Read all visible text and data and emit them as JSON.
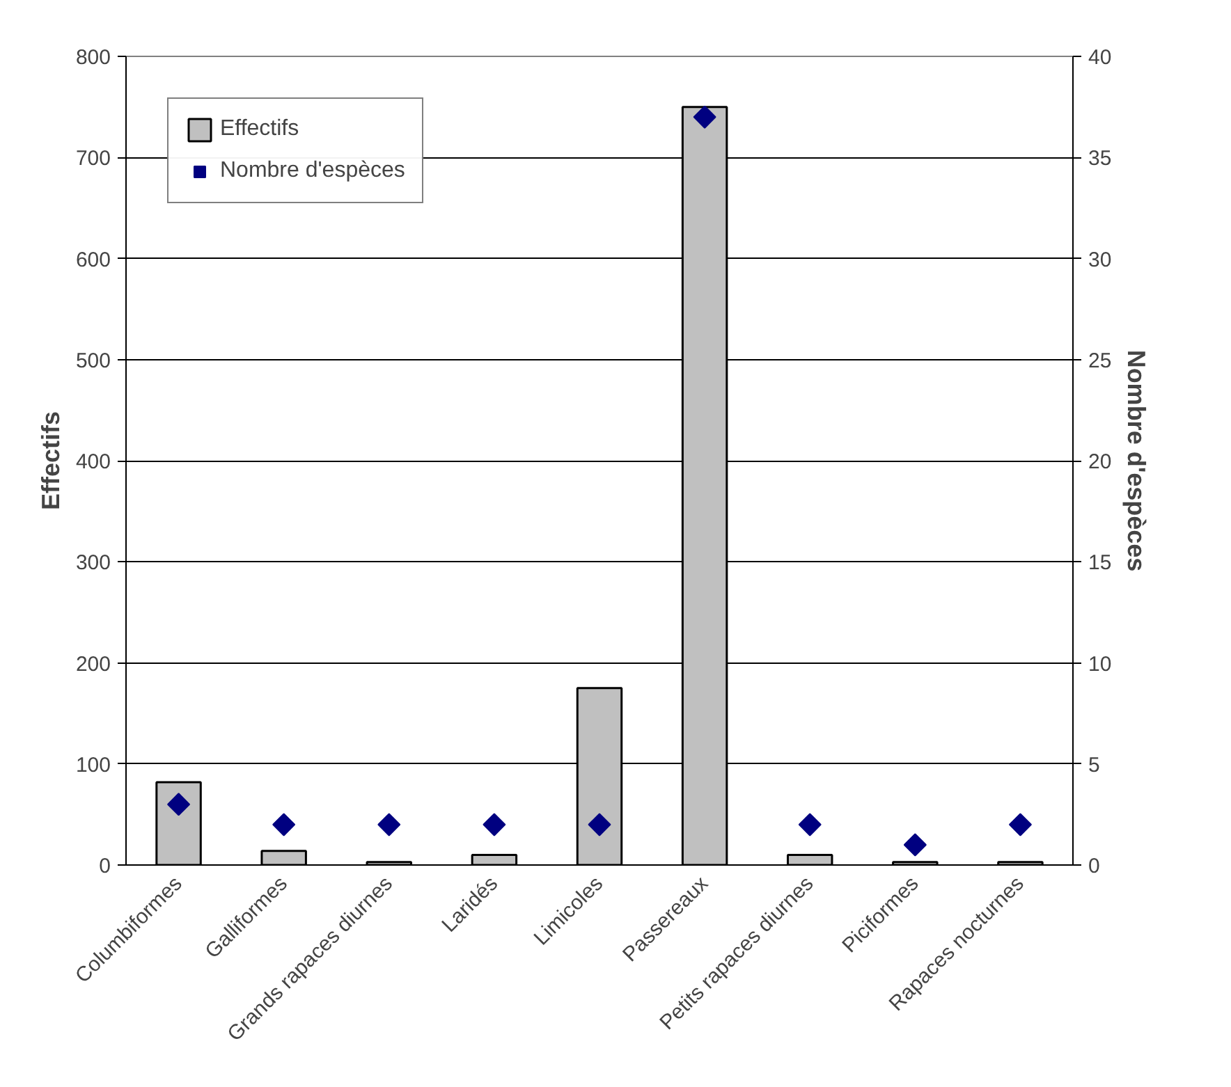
{
  "chart_data": {
    "type": "bar",
    "ylabel": "Effectifs",
    "y2label": "Nombre d'espèces",
    "categories": [
      "Columbiformes",
      "Galliformes",
      "Grands rapaces diurnes",
      "Laridés",
      "Limicoles",
      "Passereaux",
      "Petits rapaces diurnes",
      "Piciformes",
      "Rapaces nocturnes"
    ],
    "series": [
      {
        "name": "Effectifs",
        "color": "#c0c0c0",
        "values": [
          82,
          14,
          3,
          10,
          175,
          750,
          10,
          3,
          3
        ]
      },
      {
        "name": "Nombre d'espèces",
        "type": "scatter",
        "axis": "y2",
        "color": "#000080",
        "values": [
          3,
          2,
          2,
          2,
          2,
          37,
          2,
          1,
          2
        ]
      }
    ],
    "ylim": [
      0,
      800
    ],
    "yticks": [
      0,
      100,
      200,
      300,
      400,
      500,
      600,
      700,
      800
    ],
    "y2lim": [
      0,
      40
    ],
    "y2ticks": [
      0,
      5,
      10,
      15,
      20,
      25,
      30,
      35,
      40
    ],
    "grid": "y",
    "legend": "top left",
    "marker": "diamond"
  }
}
